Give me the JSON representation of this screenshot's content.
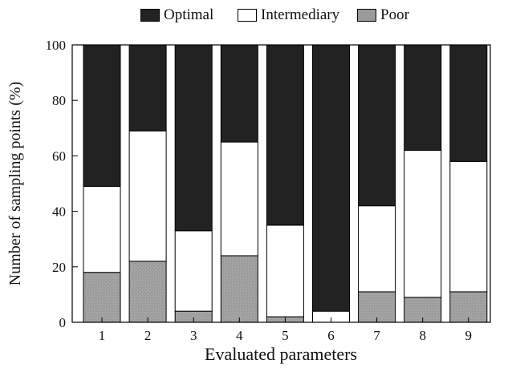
{
  "chart_data": {
    "type": "bar",
    "stacked": true,
    "xlabel": "Evaluated parameters",
    "ylabel": "Number of sampling points (%)",
    "categories": [
      "1",
      "2",
      "3",
      "4",
      "5",
      "6",
      "7",
      "8",
      "9"
    ],
    "yticks": [
      "0",
      "20",
      "40",
      "60",
      "80",
      "100"
    ],
    "ylim": [
      0,
      100
    ],
    "legend_position": "top",
    "grid": false,
    "series": [
      {
        "name": "Poor",
        "color": "#9a9a9a",
        "values": [
          18,
          22,
          4,
          24,
          2,
          0,
          11,
          9,
          11
        ]
      },
      {
        "name": "Intermediary",
        "color": "#ffffff",
        "values": [
          31,
          47,
          29,
          41,
          33,
          4,
          31,
          53,
          47
        ]
      },
      {
        "name": "Optimal",
        "color": "#222222",
        "values": [
          51,
          31,
          67,
          35,
          65,
          96,
          58,
          38,
          42
        ]
      }
    ]
  }
}
